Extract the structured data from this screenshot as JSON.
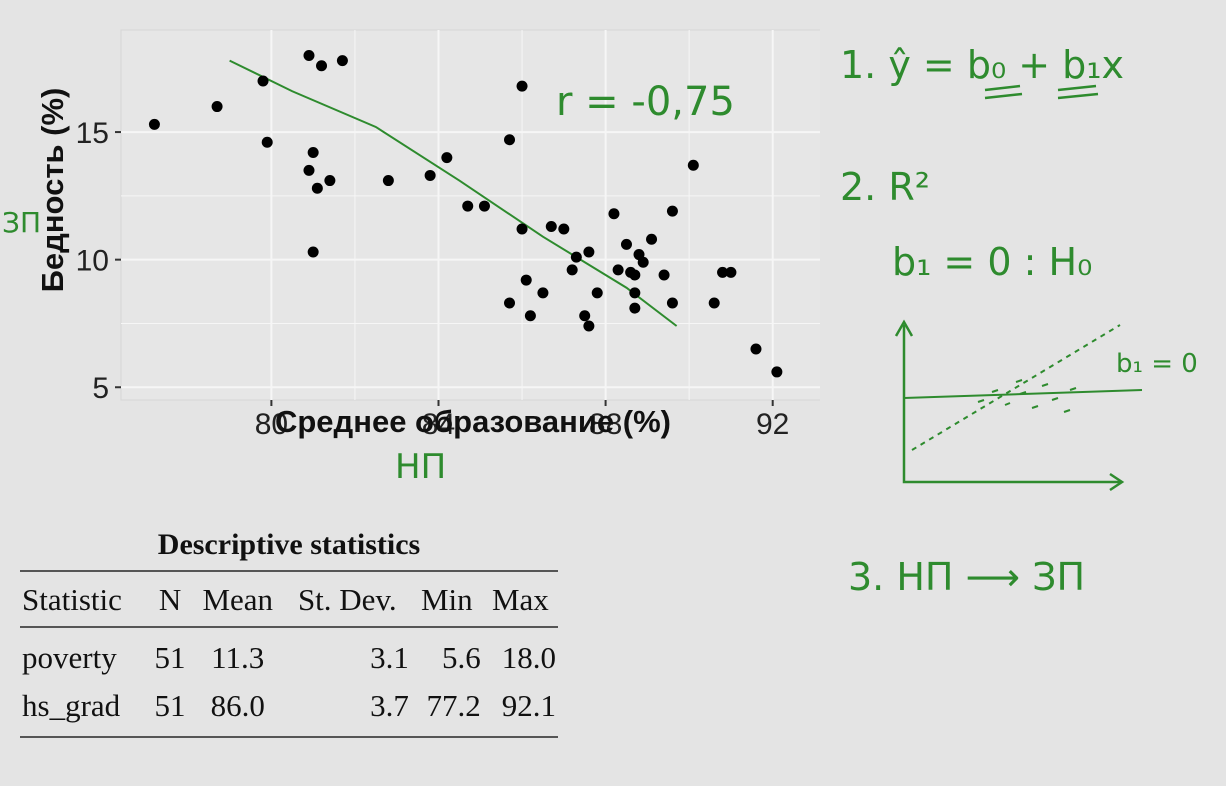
{
  "chart_data": {
    "type": "scatter",
    "xlabel": "Среднее образование (%)",
    "ylabel": "Бедность (%)",
    "xlim": [
      76.4,
      93.3
    ],
    "ylim": [
      4.5,
      19.0
    ],
    "x_ticks": [
      80,
      84,
      88,
      92
    ],
    "y_ticks": [
      5,
      10,
      15
    ],
    "grid": true,
    "points": [
      [
        77.2,
        15.3
      ],
      [
        78.7,
        16.0
      ],
      [
        79.8,
        17.0
      ],
      [
        79.9,
        14.6
      ],
      [
        80.9,
        13.5
      ],
      [
        81.0,
        14.2
      ],
      [
        81.0,
        10.3
      ],
      [
        81.1,
        12.8
      ],
      [
        81.4,
        13.1
      ],
      [
        80.9,
        18.0
      ],
      [
        81.2,
        17.6
      ],
      [
        81.7,
        17.8
      ],
      [
        82.8,
        13.1
      ],
      [
        83.8,
        13.3
      ],
      [
        84.2,
        14.0
      ],
      [
        84.7,
        12.1
      ],
      [
        85.1,
        12.1
      ],
      [
        85.7,
        8.3
      ],
      [
        85.7,
        14.7
      ],
      [
        86.0,
        11.2
      ],
      [
        86.0,
        16.8
      ],
      [
        86.1,
        9.2
      ],
      [
        86.2,
        7.8
      ],
      [
        86.5,
        8.7
      ],
      [
        86.7,
        11.3
      ],
      [
        87.0,
        11.2
      ],
      [
        87.2,
        9.6
      ],
      [
        87.3,
        10.1
      ],
      [
        87.5,
        7.8
      ],
      [
        87.6,
        7.4
      ],
      [
        87.6,
        10.3
      ],
      [
        87.8,
        8.7
      ],
      [
        88.2,
        11.8
      ],
      [
        88.3,
        9.6
      ],
      [
        88.5,
        10.6
      ],
      [
        88.7,
        9.4
      ],
      [
        88.7,
        8.7
      ],
      [
        88.7,
        8.1
      ],
      [
        88.8,
        10.2
      ],
      [
        88.9,
        9.9
      ],
      [
        89.1,
        10.8
      ],
      [
        89.4,
        9.4
      ],
      [
        89.6,
        11.9
      ],
      [
        89.6,
        8.3
      ],
      [
        90.1,
        13.7
      ],
      [
        90.6,
        8.3
      ],
      [
        90.8,
        9.5
      ],
      [
        91.0,
        9.5
      ],
      [
        91.6,
        6.5
      ],
      [
        92.1,
        5.6
      ],
      [
        88.6,
        9.5
      ]
    ],
    "trend_line": [
      [
        79.0,
        17.8
      ],
      [
        80.5,
        16.6
      ],
      [
        82.5,
        15.2
      ],
      [
        84.5,
        13.1
      ],
      [
        86.5,
        10.9
      ],
      [
        88.5,
        8.9
      ],
      [
        89.7,
        7.4
      ]
    ]
  },
  "annotations": {
    "r_value": "r = -0,75",
    "y_note": "ЗП",
    "x_note": "НП"
  },
  "notes": {
    "item1": "1.  ŷ = b₀ + b₁x",
    "item2": "2.  R²",
    "hypothesis": "b₁ = 0  :  H₀",
    "sketch_label": "b₁ = 0",
    "item3": "3.  НП ⟶ ЗП"
  },
  "table": {
    "caption": "Descriptive statistics",
    "headers": [
      "Statistic",
      "N",
      "Mean",
      "St. Dev.",
      "Min",
      "Max"
    ],
    "rows": [
      [
        "poverty",
        "51",
        "11.3",
        "3.1",
        "5.6",
        "18.0"
      ],
      [
        "hs_grad",
        "51",
        "86.0",
        "3.7",
        "77.2",
        "92.1"
      ]
    ]
  },
  "colors": {
    "plot_bg": "#e4e4e4",
    "grid": "#f6f6f6",
    "point": "#000000",
    "ink": "#2e8b2e"
  }
}
